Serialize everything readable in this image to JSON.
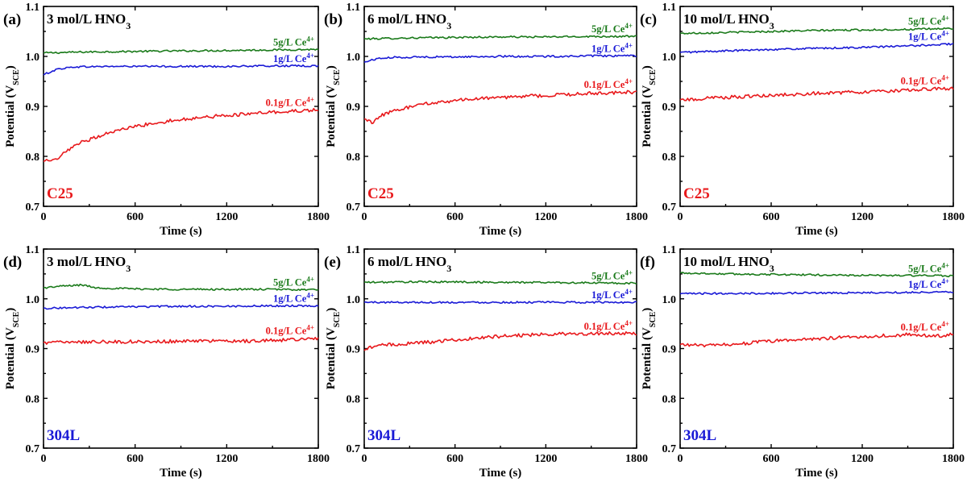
{
  "chart_data": [
    {
      "type": "line",
      "panel": "(a)",
      "title_main": "3 mol/L HNO",
      "title_sub": "3",
      "material": "C25",
      "material_color": "#e8191c",
      "xlabel": "Time (s)",
      "ylabel_main": "Potential (V",
      "ylabel_sub": "SCE",
      "ylabel_close": ")",
      "xlim": [
        0,
        1800
      ],
      "ylim": [
        0.7,
        1.1
      ],
      "xticks": [
        "0",
        "600",
        "1200",
        "1800"
      ],
      "yticks": [
        "0.7",
        "0.8",
        "0.9",
        "1.0",
        "1.1"
      ],
      "series": [
        {
          "name": "5g/L Ce",
          "sup": "4+",
          "color": "#1a7a1a",
          "x": [
            0,
            300,
            600,
            900,
            1200,
            1500,
            1800
          ],
          "y": [
            1.007,
            1.009,
            1.01,
            1.011,
            1.012,
            1.013,
            1.014
          ]
        },
        {
          "name": "1g/L Ce",
          "sup": "4+",
          "color": "#1a1ad6",
          "x": [
            0,
            50,
            100,
            200,
            400,
            600,
            900,
            1200,
            1500,
            1800
          ],
          "y": [
            0.963,
            0.97,
            0.975,
            0.979,
            0.98,
            0.98,
            0.98,
            0.98,
            0.981,
            0.981
          ]
        },
        {
          "name": "0.1g/L Ce",
          "sup": "4+",
          "color": "#e8191c",
          "x": [
            0,
            80,
            150,
            250,
            400,
            600,
            800,
            1000,
            1200,
            1400,
            1600,
            1800
          ],
          "y": [
            0.79,
            0.792,
            0.81,
            0.828,
            0.845,
            0.86,
            0.87,
            0.877,
            0.882,
            0.886,
            0.89,
            0.893
          ]
        }
      ]
    },
    {
      "type": "line",
      "panel": "(b)",
      "title_main": "6 mol/L HNO",
      "title_sub": "3",
      "material": "C25",
      "material_color": "#e8191c",
      "xlabel": "Time (s)",
      "ylabel_main": "Potential (V",
      "ylabel_sub": "SCE",
      "ylabel_close": ")",
      "xlim": [
        0,
        1800
      ],
      "ylim": [
        0.7,
        1.1
      ],
      "xticks": [
        "0",
        "600",
        "1200",
        "1800"
      ],
      "yticks": [
        "0.7",
        "0.8",
        "0.9",
        "1.0",
        "1.1"
      ],
      "series": [
        {
          "name": "5g/L Ce",
          "sup": "4+",
          "color": "#1a7a1a",
          "x": [
            0,
            300,
            600,
            900,
            1200,
            1500,
            1800
          ],
          "y": [
            1.035,
            1.037,
            1.038,
            1.039,
            1.039,
            1.04,
            1.04
          ]
        },
        {
          "name": "1g/L Ce",
          "sup": "4+",
          "color": "#1a1ad6",
          "x": [
            0,
            50,
            100,
            200,
            400,
            600,
            900,
            1200,
            1500,
            1800
          ],
          "y": [
            0.988,
            0.993,
            0.996,
            0.998,
            0.999,
            0.999,
            1.0,
            1.0,
            1.001,
            1.001
          ]
        },
        {
          "name": "0.1g/L Ce",
          "sup": "4+",
          "color": "#e8191c",
          "x": [
            0,
            30,
            60,
            100,
            200,
            400,
            600,
            900,
            1200,
            1500,
            1800
          ],
          "y": [
            0.875,
            0.87,
            0.867,
            0.88,
            0.892,
            0.905,
            0.912,
            0.918,
            0.922,
            0.926,
            0.929
          ]
        }
      ]
    },
    {
      "type": "line",
      "panel": "(c)",
      "title_main": "10 mol/L HNO",
      "title_sub": "3",
      "material": "C25",
      "material_color": "#e8191c",
      "xlabel": "Time (s)",
      "ylabel_main": "Potential (V",
      "ylabel_sub": "SCE",
      "ylabel_close": ")",
      "xlim": [
        0,
        1800
      ],
      "ylim": [
        0.7,
        1.1
      ],
      "xticks": [
        "0",
        "600",
        "1200",
        "1800"
      ],
      "yticks": [
        "0.7",
        "0.8",
        "0.9",
        "1.0",
        "1.1"
      ],
      "series": [
        {
          "name": "5g/L Ce",
          "sup": "4+",
          "color": "#1a7a1a",
          "x": [
            0,
            300,
            600,
            900,
            1200,
            1500,
            1800
          ],
          "y": [
            1.046,
            1.048,
            1.05,
            1.052,
            1.053,
            1.054,
            1.056
          ]
        },
        {
          "name": "1g/L Ce",
          "sup": "4+",
          "color": "#1a1ad6",
          "x": [
            0,
            300,
            600,
            900,
            1200,
            1500,
            1800
          ],
          "y": [
            1.008,
            1.011,
            1.014,
            1.016,
            1.018,
            1.021,
            1.025
          ]
        },
        {
          "name": "0.1g/L Ce",
          "sup": "4+",
          "color": "#e8191c",
          "x": [
            0,
            300,
            600,
            900,
            1200,
            1500,
            1800
          ],
          "y": [
            0.913,
            0.918,
            0.922,
            0.926,
            0.929,
            0.933,
            0.936
          ]
        }
      ]
    },
    {
      "type": "line",
      "panel": "(d)",
      "title_main": "3 mol/L HNO",
      "title_sub": "3",
      "material": "304L",
      "material_color": "#1a1ad6",
      "xlabel": "Time (s)",
      "ylabel_main": "Potential (V",
      "ylabel_sub": "SCE",
      "ylabel_close": ")",
      "xlim": [
        0,
        1800
      ],
      "ylim": [
        0.7,
        1.1
      ],
      "xticks": [
        "0",
        "600",
        "1200",
        "1800"
      ],
      "yticks": [
        "0.7",
        "0.8",
        "0.9",
        "1.0",
        "1.1"
      ],
      "series": [
        {
          "name": "5g/L Ce",
          "sup": "4+",
          "color": "#1a7a1a",
          "x": [
            0,
            100,
            250,
            350,
            600,
            900,
            1200,
            1500,
            1800
          ],
          "y": [
            1.022,
            1.025,
            1.028,
            1.022,
            1.02,
            1.019,
            1.019,
            1.019,
            1.018
          ]
        },
        {
          "name": "1g/L Ce",
          "sup": "4+",
          "color": "#1a1ad6",
          "x": [
            0,
            300,
            600,
            900,
            1200,
            1500,
            1800
          ],
          "y": [
            0.981,
            0.983,
            0.984,
            0.985,
            0.985,
            0.986,
            0.986
          ]
        },
        {
          "name": "0.1g/L Ce",
          "sup": "4+",
          "color": "#e8191c",
          "x": [
            0,
            300,
            600,
            900,
            1200,
            1500,
            1800
          ],
          "y": [
            0.912,
            0.914,
            0.914,
            0.915,
            0.915,
            0.916,
            0.921
          ]
        }
      ]
    },
    {
      "type": "line",
      "panel": "(e)",
      "title_main": "6 mol/L HNO",
      "title_sub": "3",
      "material": "304L",
      "material_color": "#1a1ad6",
      "xlabel": "Time (s)",
      "ylabel_main": "Potential (V",
      "ylabel_sub": "SCE",
      "ylabel_close": ")",
      "xlim": [
        0,
        1800
      ],
      "ylim": [
        0.7,
        1.1
      ],
      "xticks": [
        "0",
        "600",
        "1200",
        "1800"
      ],
      "yticks": [
        "0.7",
        "0.8",
        "0.9",
        "1.0",
        "1.1"
      ],
      "series": [
        {
          "name": "5g/L Ce",
          "sup": "4+",
          "color": "#1a7a1a",
          "x": [
            0,
            300,
            600,
            900,
            1200,
            1500,
            1800
          ],
          "y": [
            1.033,
            1.034,
            1.034,
            1.033,
            1.033,
            1.032,
            1.031
          ]
        },
        {
          "name": "1g/L Ce",
          "sup": "4+",
          "color": "#1a1ad6",
          "x": [
            0,
            300,
            600,
            900,
            1200,
            1500,
            1800
          ],
          "y": [
            0.993,
            0.993,
            0.993,
            0.993,
            0.993,
            0.993,
            0.993
          ]
        },
        {
          "name": "0.1g/L Ce",
          "sup": "4+",
          "color": "#e8191c",
          "x": [
            0,
            50,
            150,
            300,
            600,
            900,
            1200,
            1500,
            1800
          ],
          "y": [
            0.896,
            0.903,
            0.908,
            0.91,
            0.917,
            0.925,
            0.929,
            0.93,
            0.93
          ]
        }
      ]
    },
    {
      "type": "line",
      "panel": "(f)",
      "title_main": "10 mol/L HNO",
      "title_sub": "3",
      "material": "304L",
      "material_color": "#1a1ad6",
      "xlabel": "Time (s)",
      "ylabel_main": "Potential (V",
      "ylabel_sub": "SCE",
      "ylabel_close": ")",
      "xlim": [
        0,
        1800
      ],
      "ylim": [
        0.7,
        1.1
      ],
      "xticks": [
        "0",
        "600",
        "1200",
        "1800"
      ],
      "yticks": [
        "0.7",
        "0.8",
        "0.9",
        "1.0",
        "1.1"
      ],
      "series": [
        {
          "name": "5g/L Ce",
          "sup": "4+",
          "color": "#1a7a1a",
          "x": [
            0,
            300,
            600,
            900,
            1200,
            1500,
            1800
          ],
          "y": [
            1.052,
            1.05,
            1.049,
            1.048,
            1.047,
            1.047,
            1.046
          ]
        },
        {
          "name": "1g/L Ce",
          "sup": "4+",
          "color": "#1a1ad6",
          "x": [
            0,
            300,
            600,
            900,
            1200,
            1500,
            1800
          ],
          "y": [
            1.01,
            1.011,
            1.011,
            1.012,
            1.012,
            1.013,
            1.014
          ]
        },
        {
          "name": "0.1g/L Ce",
          "sup": "4+",
          "color": "#e8191c",
          "x": [
            0,
            200,
            400,
            600,
            900,
            1200,
            1500,
            1700,
            1800
          ],
          "y": [
            0.908,
            0.906,
            0.91,
            0.915,
            0.92,
            0.924,
            0.928,
            0.925,
            0.928
          ]
        }
      ]
    }
  ]
}
